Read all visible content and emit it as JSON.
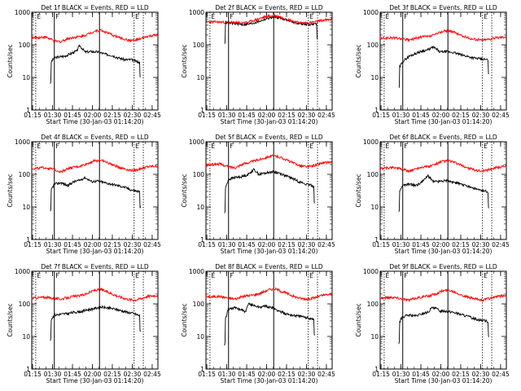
{
  "chart_data": {
    "type": "line",
    "yscale": "log",
    "ylim": [
      1,
      1000
    ],
    "yticks": [
      1,
      10,
      100,
      1000
    ],
    "ytick_labels": [
      "1",
      "10",
      "100",
      "1000"
    ],
    "ylabel": "Counts/sec",
    "xlabel": "Start Time (30-Jan-03 01:14:20)",
    "xlim_minutes": [
      0,
      95
    ],
    "xtick_labels": [
      "01:15",
      "01:30",
      "01:45",
      "02:00",
      "02:15",
      "02:30",
      "02:45"
    ],
    "xtick_minutes": [
      0.67,
      15.67,
      30.67,
      45.67,
      60.67,
      75.67,
      90.67
    ],
    "marker_lines": [
      {
        "label": "E",
        "minute": 3,
        "style": "dotted"
      },
      {
        "label": "F",
        "minute": 17,
        "style": "solid"
      },
      {
        "label": "",
        "minute": 51,
        "style": "solid"
      },
      {
        "label": "E",
        "minute": 77,
        "style": "dotted"
      },
      {
        "label": "",
        "minute": 84,
        "style": "dotted"
      }
    ],
    "panels": [
      {
        "title": "Det 1f BLACK = Events, RED = LLD",
        "series": [
          {
            "name": "Events",
            "color": "#000000",
            "t0": 14,
            "t1": 82,
            "x": [
              14,
              17,
              20,
              25,
              30,
              34,
              36,
              40,
              45,
              50,
              55,
              60,
              65,
              70,
              75,
              80,
              82
            ],
            "y": [
              27,
              40,
              42,
              45,
              55,
              65,
              95,
              60,
              62,
              60,
              52,
              48,
              40,
              35,
              35,
              30,
              28
            ]
          },
          {
            "name": "LLD",
            "color": "#ff0000",
            "t0": 0,
            "t1": 95,
            "x": [
              0,
              10,
              17,
              22,
              27,
              32,
              37,
              42,
              47,
              52,
              57,
              62,
              67,
              72,
              77,
              82,
              87,
              95
            ],
            "y": [
              160,
              175,
              130,
              125,
              155,
              170,
              180,
              210,
              260,
              280,
              230,
              190,
              160,
              140,
              135,
              150,
              180,
              200
            ]
          }
        ]
      },
      {
        "title": "Det 2f BLACK = Events, RED = LLD",
        "series": [
          {
            "name": "Events",
            "color": "#000000",
            "t0": 14,
            "t1": 84,
            "x": [
              14,
              17,
              22,
              27,
              32,
              37,
              42,
              47,
              52,
              57,
              62,
              67,
              72,
              77,
              82,
              84
            ],
            "y": [
              470,
              470,
              450,
              420,
              430,
              480,
              560,
              660,
              720,
              650,
              560,
              480,
              440,
              420,
              430,
              440
            ]
          },
          {
            "name": "LLD",
            "color": "#ff0000",
            "t0": 0,
            "t1": 95,
            "x": [
              0,
              10,
              17,
              22,
              27,
              32,
              37,
              42,
              47,
              52,
              57,
              62,
              67,
              72,
              77,
              82,
              87,
              95
            ],
            "y": [
              510,
              500,
              490,
              480,
              470,
              500,
              570,
              670,
              760,
              780,
              690,
              590,
              510,
              470,
              470,
              500,
              560,
              600
            ]
          }
        ]
      },
      {
        "title": "Det 3f BLACK = Events, RED = LLD",
        "series": [
          {
            "name": "Events",
            "color": "#000000",
            "t0": 14,
            "t1": 82,
            "x": [
              14,
              17,
              22,
              27,
              32,
              36,
              40,
              45,
              50,
              55,
              60,
              65,
              70,
              75,
              80,
              82
            ],
            "y": [
              18,
              30,
              45,
              55,
              65,
              70,
              85,
              60,
              62,
              58,
              50,
              45,
              40,
              37,
              35,
              34
            ]
          },
          {
            "name": "LLD",
            "color": "#ff0000",
            "t0": 0,
            "t1": 95,
            "x": [
              0,
              10,
              17,
              22,
              27,
              32,
              37,
              42,
              47,
              52,
              57,
              62,
              67,
              72,
              77,
              82,
              87,
              95
            ],
            "y": [
              155,
              165,
              150,
              140,
              160,
              175,
              180,
              210,
              260,
              270,
              230,
              185,
              160,
              145,
              140,
              150,
              165,
              180
            ]
          }
        ]
      },
      {
        "title": "Det 4f BLACK = Events, RED = LLD",
        "series": [
          {
            "name": "Events",
            "color": "#000000",
            "t0": 14,
            "t1": 82,
            "x": [
              14,
              17,
              22,
              27,
              32,
              36,
              40,
              45,
              50,
              55,
              60,
              65,
              70,
              75,
              80,
              82
            ],
            "y": [
              28,
              50,
              55,
              45,
              60,
              65,
              80,
              60,
              62,
              55,
              50,
              45,
              40,
              33,
              30,
              28
            ]
          },
          {
            "name": "LLD",
            "color": "#ff0000",
            "t0": 0,
            "t1": 95,
            "x": [
              0,
              10,
              17,
              22,
              27,
              32,
              37,
              42,
              47,
              52,
              57,
              62,
              67,
              72,
              77,
              82,
              87,
              95
            ],
            "y": [
              150,
              160,
              140,
              120,
              150,
              165,
              180,
              215,
              260,
              270,
              230,
              185,
              160,
              140,
              130,
              150,
              170,
              180
            ]
          }
        ]
      },
      {
        "title": "Det 5f BLACK = Events, RED = LLD",
        "series": [
          {
            "name": "Events",
            "color": "#000000",
            "t0": 14,
            "t1": 82,
            "x": [
              14,
              17,
              22,
              27,
              32,
              36,
              40,
              45,
              50,
              55,
              60,
              65,
              70,
              75,
              80,
              82
            ],
            "y": [
              25,
              70,
              80,
              85,
              100,
              140,
              100,
              110,
              120,
              110,
              90,
              75,
              60,
              50,
              45,
              40
            ]
          },
          {
            "name": "LLD",
            "color": "#ff0000",
            "t0": 0,
            "t1": 95,
            "x": [
              0,
              10,
              17,
              22,
              27,
              32,
              37,
              42,
              47,
              52,
              57,
              62,
              67,
              72,
              77,
              82,
              87,
              95
            ],
            "y": [
              190,
              210,
              170,
              160,
              200,
              230,
              260,
              300,
              350,
              370,
              320,
              260,
              210,
              180,
              170,
              190,
              220,
              240
            ]
          }
        ]
      },
      {
        "title": "Det 6f BLACK = Events, RED = LLD",
        "series": [
          {
            "name": "Events",
            "color": "#000000",
            "t0": 14,
            "t1": 82,
            "x": [
              14,
              17,
              22,
              27,
              32,
              36,
              40,
              45,
              50,
              55,
              60,
              65,
              70,
              75,
              80,
              82
            ],
            "y": [
              28,
              45,
              50,
              45,
              60,
              90,
              60,
              62,
              65,
              58,
              50,
              45,
              38,
              32,
              30,
              28
            ]
          },
          {
            "name": "LLD",
            "color": "#ff0000",
            "t0": 0,
            "t1": 95,
            "x": [
              0,
              10,
              17,
              22,
              27,
              32,
              37,
              42,
              47,
              52,
              57,
              62,
              67,
              72,
              77,
              82,
              87,
              95
            ],
            "y": [
              150,
              165,
              140,
              125,
              150,
              170,
              175,
              205,
              250,
              260,
              220,
              180,
              150,
              135,
              125,
              140,
              160,
              180
            ]
          }
        ]
      },
      {
        "title": "Det 7f BLACK = Events, RED = LLD",
        "series": [
          {
            "name": "Events",
            "color": "#000000",
            "t0": 14,
            "t1": 82,
            "x": [
              14,
              17,
              22,
              27,
              32,
              37,
              42,
              47,
              52,
              57,
              62,
              67,
              72,
              77,
              80,
              82
            ],
            "y": [
              30,
              45,
              48,
              50,
              55,
              58,
              65,
              72,
              80,
              75,
              70,
              62,
              55,
              50,
              45,
              42
            ]
          },
          {
            "name": "LLD",
            "color": "#ff0000",
            "t0": 0,
            "t1": 95,
            "x": [
              0,
              10,
              17,
              22,
              27,
              32,
              37,
              42,
              47,
              52,
              57,
              62,
              67,
              72,
              77,
              82,
              87,
              95
            ],
            "y": [
              150,
              160,
              145,
              140,
              155,
              170,
              180,
              210,
              260,
              280,
              230,
              190,
              160,
              140,
              130,
              145,
              170,
              185
            ]
          }
        ]
      },
      {
        "title": "Det 8f BLACK = Events, RED = LLD",
        "series": [
          {
            "name": "Events",
            "color": "#000000",
            "t0": 14,
            "t1": 82,
            "x": [
              14,
              17,
              22,
              27,
              30,
              32,
              36,
              40,
              45,
              50,
              55,
              60,
              65,
              70,
              75,
              80,
              82
            ],
            "y": [
              22,
              70,
              75,
              65,
              55,
              100,
              90,
              80,
              85,
              75,
              60,
              50,
              45,
              42,
              38,
              35,
              32
            ]
          },
          {
            "name": "LLD",
            "color": "#ff0000",
            "t0": 0,
            "t1": 95,
            "x": [
              0,
              10,
              17,
              22,
              27,
              32,
              37,
              42,
              47,
              52,
              57,
              62,
              67,
              72,
              77,
              82,
              87,
              95
            ],
            "y": [
              160,
              170,
              150,
              140,
              165,
              180,
              190,
              220,
              270,
              290,
              240,
              200,
              165,
              145,
              140,
              155,
              180,
              200
            ]
          }
        ]
      },
      {
        "title": "Det 9f BLACK = Events, RED = LLD",
        "series": [
          {
            "name": "Events",
            "color": "#000000",
            "t0": 14,
            "t1": 82,
            "x": [
              14,
              17,
              22,
              27,
              32,
              36,
              40,
              45,
              50,
              55,
              60,
              65,
              70,
              75,
              80,
              82
            ],
            "y": [
              25,
              40,
              45,
              42,
              50,
              55,
              80,
              60,
              60,
              55,
              48,
              42,
              36,
              32,
              30,
              28
            ]
          },
          {
            "name": "LLD",
            "color": "#ff0000",
            "t0": 0,
            "t1": 95,
            "x": [
              0,
              10,
              17,
              22,
              27,
              32,
              37,
              42,
              47,
              52,
              57,
              62,
              67,
              72,
              77,
              82,
              87,
              95
            ],
            "y": [
              150,
              160,
              140,
              130,
              150,
              165,
              175,
              205,
              250,
              265,
              225,
              180,
              155,
              140,
              130,
              145,
              165,
              180
            ]
          }
        ]
      }
    ]
  }
}
